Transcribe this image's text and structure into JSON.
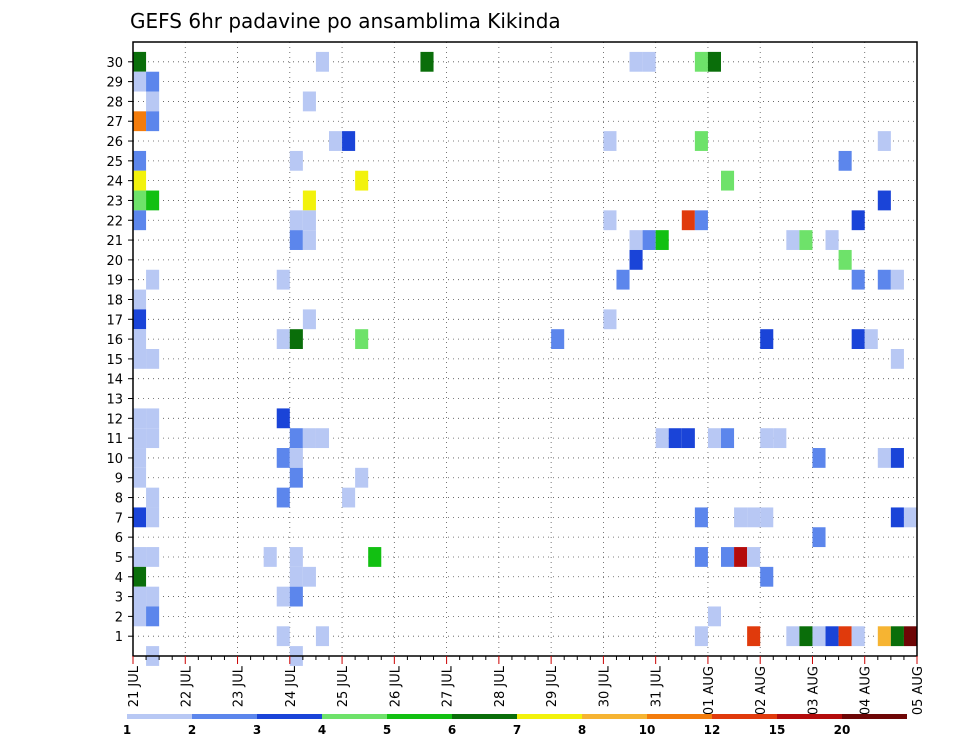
{
  "chart_data": {
    "type": "heatmap",
    "title": "GEFS 6hr padavine po ansamblima Kikinda",
    "xlabel": "",
    "ylabel": "",
    "y_categories": [
      "1",
      "2",
      "3",
      "4",
      "5",
      "6",
      "7",
      "8",
      "9",
      "10",
      "11",
      "12",
      "13",
      "14",
      "15",
      "16",
      "17",
      "18",
      "19",
      "20",
      "21",
      "22",
      "23",
      "24",
      "25",
      "26",
      "27",
      "28",
      "29",
      "30"
    ],
    "y_range": [
      0,
      30
    ],
    "x_date_labels": [
      "21 JUL",
      "22 JUL",
      "23 JUL",
      "24 JUL",
      "25 JUL",
      "26 JUL",
      "27 JUL",
      "28 JUL",
      "29 JUL",
      "30 JUL",
      "31 JUL",
      "01 AUG",
      "02 AUG",
      "03 AUG",
      "04 AUG",
      "05 AUG"
    ],
    "x_step_hours": 6,
    "x_steps": 60,
    "grid": true,
    "colorbar": {
      "tick_labels": [
        "1",
        "2",
        "3",
        "4",
        "5",
        "6",
        "7",
        "8",
        "10",
        "12",
        "15",
        "20"
      ],
      "levels": [
        1,
        2,
        3,
        4,
        5,
        6,
        7,
        8,
        10,
        12,
        15,
        20
      ],
      "colors": [
        "#b8c8f4",
        "#5c86ec",
        "#1a44d8",
        "#6ee26a",
        "#12c012",
        "#0a6e0a",
        "#f2f20c",
        "#f6b432",
        "#f37c0c",
        "#e03a0c",
        "#b40c0c",
        "#6e0606"
      ]
    },
    "cells": [
      {
        "member": 30,
        "step": 0,
        "color_index": 5
      },
      {
        "member": 30,
        "step": 14,
        "color_index": 0
      },
      {
        "member": 30,
        "step": 22,
        "color_index": 5
      },
      {
        "member": 30,
        "step": 38,
        "color_index": 0
      },
      {
        "member": 30,
        "step": 39,
        "color_index": 0
      },
      {
        "member": 30,
        "step": 43,
        "color_index": 3
      },
      {
        "member": 30,
        "step": 44,
        "color_index": 5
      },
      {
        "member": 29,
        "step": 0,
        "color_index": 0
      },
      {
        "member": 29,
        "step": 1,
        "color_index": 1
      },
      {
        "member": 28,
        "step": 1,
        "color_index": 0
      },
      {
        "member": 28,
        "step": 13,
        "color_index": 0
      },
      {
        "member": 27,
        "step": 0,
        "color_index": 8
      },
      {
        "member": 27,
        "step": 1,
        "color_index": 1
      },
      {
        "member": 26,
        "step": 15,
        "color_index": 0
      },
      {
        "member": 26,
        "step": 16,
        "color_index": 2
      },
      {
        "member": 26,
        "step": 36,
        "color_index": 0
      },
      {
        "member": 26,
        "step": 43,
        "color_index": 3
      },
      {
        "member": 26,
        "step": 57,
        "color_index": 0
      },
      {
        "member": 25,
        "step": 0,
        "color_index": 1
      },
      {
        "member": 25,
        "step": 12,
        "color_index": 0
      },
      {
        "member": 25,
        "step": 54,
        "color_index": 1
      },
      {
        "member": 24,
        "step": 0,
        "color_index": 6
      },
      {
        "member": 24,
        "step": 17,
        "color_index": 6
      },
      {
        "member": 24,
        "step": 45,
        "color_index": 3
      },
      {
        "member": 23,
        "step": 0,
        "color_index": 3
      },
      {
        "member": 23,
        "step": 1,
        "color_index": 4
      },
      {
        "member": 23,
        "step": 13,
        "color_index": 6
      },
      {
        "member": 23,
        "step": 57,
        "color_index": 2
      },
      {
        "member": 22,
        "step": 0,
        "color_index": 1
      },
      {
        "member": 22,
        "step": 12,
        "color_index": 0
      },
      {
        "member": 22,
        "step": 13,
        "color_index": 0
      },
      {
        "member": 22,
        "step": 36,
        "color_index": 0
      },
      {
        "member": 22,
        "step": 42,
        "color_index": 9
      },
      {
        "member": 22,
        "step": 43,
        "color_index": 1
      },
      {
        "member": 22,
        "step": 55,
        "color_index": 2
      },
      {
        "member": 21,
        "step": 12,
        "color_index": 1
      },
      {
        "member": 21,
        "step": 13,
        "color_index": 0
      },
      {
        "member": 21,
        "step": 38,
        "color_index": 0
      },
      {
        "member": 21,
        "step": 39,
        "color_index": 1
      },
      {
        "member": 21,
        "step": 40,
        "color_index": 4
      },
      {
        "member": 21,
        "step": 50,
        "color_index": 0
      },
      {
        "member": 21,
        "step": 51,
        "color_index": 3
      },
      {
        "member": 21,
        "step": 53,
        "color_index": 0
      },
      {
        "member": 20,
        "step": 38,
        "color_index": 2
      },
      {
        "member": 20,
        "step": 54,
        "color_index": 3
      },
      {
        "member": 19,
        "step": 1,
        "color_index": 0
      },
      {
        "member": 19,
        "step": 11,
        "color_index": 0
      },
      {
        "member": 19,
        "step": 37,
        "color_index": 1
      },
      {
        "member": 19,
        "step": 55,
        "color_index": 1
      },
      {
        "member": 19,
        "step": 57,
        "color_index": 1
      },
      {
        "member": 19,
        "step": 58,
        "color_index": 0
      },
      {
        "member": 18,
        "step": 0,
        "color_index": 0
      },
      {
        "member": 17,
        "step": 0,
        "color_index": 2
      },
      {
        "member": 17,
        "step": 13,
        "color_index": 0
      },
      {
        "member": 17,
        "step": 36,
        "color_index": 0
      },
      {
        "member": 16,
        "step": 0,
        "color_index": 0
      },
      {
        "member": 16,
        "step": 11,
        "color_index": 0
      },
      {
        "member": 16,
        "step": 12,
        "color_index": 5
      },
      {
        "member": 16,
        "step": 17,
        "color_index": 3
      },
      {
        "member": 16,
        "step": 32,
        "color_index": 1
      },
      {
        "member": 16,
        "step": 48,
        "color_index": 2
      },
      {
        "member": 16,
        "step": 55,
        "color_index": 2
      },
      {
        "member": 16,
        "step": 56,
        "color_index": 0
      },
      {
        "member": 15,
        "step": 0,
        "color_index": 0
      },
      {
        "member": 15,
        "step": 1,
        "color_index": 0
      },
      {
        "member": 15,
        "step": 58,
        "color_index": 0
      },
      {
        "member": 12,
        "step": 0,
        "color_index": 0
      },
      {
        "member": 12,
        "step": 1,
        "color_index": 0
      },
      {
        "member": 12,
        "step": 11,
        "color_index": 2
      },
      {
        "member": 11,
        "step": 0,
        "color_index": 0
      },
      {
        "member": 11,
        "step": 1,
        "color_index": 0
      },
      {
        "member": 11,
        "step": 12,
        "color_index": 1
      },
      {
        "member": 11,
        "step": 13,
        "color_index": 0
      },
      {
        "member": 11,
        "step": 14,
        "color_index": 0
      },
      {
        "member": 11,
        "step": 40,
        "color_index": 0
      },
      {
        "member": 11,
        "step": 41,
        "color_index": 2
      },
      {
        "member": 11,
        "step": 42,
        "color_index": 2
      },
      {
        "member": 11,
        "step": 44,
        "color_index": 0
      },
      {
        "member": 11,
        "step": 45,
        "color_index": 1
      },
      {
        "member": 11,
        "step": 48,
        "color_index": 0
      },
      {
        "member": 11,
        "step": 49,
        "color_index": 0
      },
      {
        "member": 10,
        "step": 0,
        "color_index": 0
      },
      {
        "member": 10,
        "step": 11,
        "color_index": 1
      },
      {
        "member": 10,
        "step": 12,
        "color_index": 0
      },
      {
        "member": 10,
        "step": 52,
        "color_index": 1
      },
      {
        "member": 10,
        "step": 57,
        "color_index": 0
      },
      {
        "member": 10,
        "step": 58,
        "color_index": 2
      },
      {
        "member": 9,
        "step": 0,
        "color_index": 0
      },
      {
        "member": 9,
        "step": 12,
        "color_index": 1
      },
      {
        "member": 9,
        "step": 17,
        "color_index": 0
      },
      {
        "member": 8,
        "step": 1,
        "color_index": 0
      },
      {
        "member": 8,
        "step": 11,
        "color_index": 1
      },
      {
        "member": 8,
        "step": 16,
        "color_index": 0
      },
      {
        "member": 7,
        "step": 0,
        "color_index": 2
      },
      {
        "member": 7,
        "step": 1,
        "color_index": 0
      },
      {
        "member": 7,
        "step": 43,
        "color_index": 1
      },
      {
        "member": 7,
        "step": 46,
        "color_index": 0
      },
      {
        "member": 7,
        "step": 47,
        "color_index": 0
      },
      {
        "member": 7,
        "step": 48,
        "color_index": 0
      },
      {
        "member": 7,
        "step": 58,
        "color_index": 2
      },
      {
        "member": 7,
        "step": 59,
        "color_index": 0
      },
      {
        "member": 6,
        "step": 52,
        "color_index": 1
      },
      {
        "member": 5,
        "step": 0,
        "color_index": 0
      },
      {
        "member": 5,
        "step": 1,
        "color_index": 0
      },
      {
        "member": 5,
        "step": 10,
        "color_index": 0
      },
      {
        "member": 5,
        "step": 12,
        "color_index": 0
      },
      {
        "member": 5,
        "step": 18,
        "color_index": 4
      },
      {
        "member": 5,
        "step": 43,
        "color_index": 1
      },
      {
        "member": 5,
        "step": 45,
        "color_index": 1
      },
      {
        "member": 5,
        "step": 46,
        "color_index": 10
      },
      {
        "member": 5,
        "step": 47,
        "color_index": 0
      },
      {
        "member": 4,
        "step": 0,
        "color_index": 5
      },
      {
        "member": 4,
        "step": 12,
        "color_index": 0
      },
      {
        "member": 4,
        "step": 13,
        "color_index": 0
      },
      {
        "member": 4,
        "step": 48,
        "color_index": 1
      },
      {
        "member": 3,
        "step": 0,
        "color_index": 0
      },
      {
        "member": 3,
        "step": 1,
        "color_index": 0
      },
      {
        "member": 3,
        "step": 11,
        "color_index": 0
      },
      {
        "member": 3,
        "step": 12,
        "color_index": 1
      },
      {
        "member": 2,
        "step": 0,
        "color_index": 0
      },
      {
        "member": 2,
        "step": 1,
        "color_index": 1
      },
      {
        "member": 2,
        "step": 44,
        "color_index": 0
      },
      {
        "member": 1,
        "step": 11,
        "color_index": 0
      },
      {
        "member": 1,
        "step": 14,
        "color_index": 0
      },
      {
        "member": 1,
        "step": 43,
        "color_index": 0
      },
      {
        "member": 1,
        "step": 47,
        "color_index": 9
      },
      {
        "member": 1,
        "step": 50,
        "color_index": 0
      },
      {
        "member": 1,
        "step": 51,
        "color_index": 5
      },
      {
        "member": 1,
        "step": 52,
        "color_index": 0
      },
      {
        "member": 1,
        "step": 53,
        "color_index": 2
      },
      {
        "member": 1,
        "step": 54,
        "color_index": 9
      },
      {
        "member": 1,
        "step": 55,
        "color_index": 0
      },
      {
        "member": 1,
        "step": 57,
        "color_index": 7
      },
      {
        "member": 1,
        "step": 58,
        "color_index": 5
      },
      {
        "member": 1,
        "step": 59,
        "color_index": 11
      },
      {
        "member": 0,
        "step": 1,
        "color_index": 0
      },
      {
        "member": 0,
        "step": 12,
        "color_index": 0
      }
    ]
  }
}
